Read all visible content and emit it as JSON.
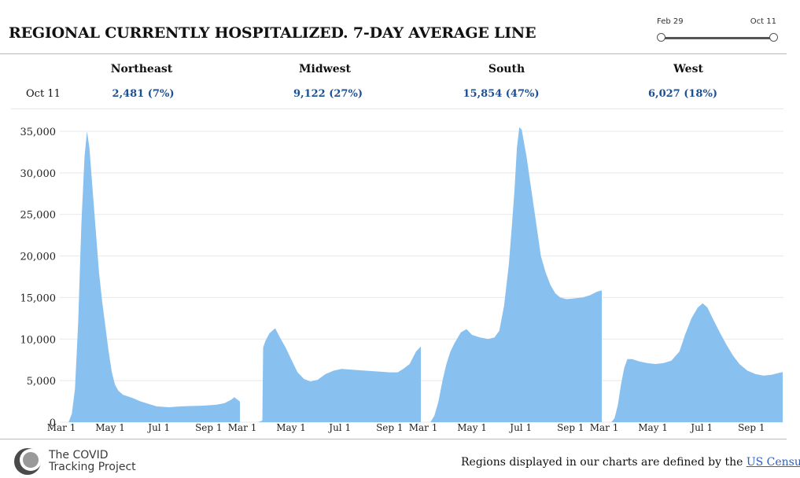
{
  "title": "REGIONAL CURRENTLY HOSPITALIZED. 7-DAY AVERAGE LINE",
  "range": {
    "start": "Feb 29",
    "end": "Oct 11"
  },
  "table": {
    "date": "Oct 11",
    "regions": [
      {
        "name": "Northeast",
        "value": "2,481 (7%)"
      },
      {
        "name": "Midwest",
        "value": "9,122 (27%)"
      },
      {
        "name": "South",
        "value": "15,854 (47%)"
      },
      {
        "name": "West",
        "value": "6,027 (18%)"
      }
    ]
  },
  "chart_data": {
    "type": "area",
    "title": "Regional currently hospitalized, 7-day average",
    "ylim": [
      0,
      35000
    ],
    "y_ticks": [
      0,
      5000,
      10000,
      15000,
      20000,
      25000,
      30000,
      35000
    ],
    "y_tick_labels": [
      "0",
      "5,000",
      "10,000",
      "15,000",
      "20,000",
      "25,000",
      "30,000",
      "35,000"
    ],
    "x_tick_labels": [
      "Mar 1",
      "May 1",
      "Jul 1",
      "Sep 1"
    ],
    "x_ticks_day": [
      1,
      62,
      123,
      185
    ],
    "x_domain_days": [
      -1,
      225
    ],
    "series": [
      {
        "name": "Northeast",
        "points": [
          [
            -1,
            0
          ],
          [
            10,
            0
          ],
          [
            14,
            1000
          ],
          [
            18,
            4000
          ],
          [
            22,
            12000
          ],
          [
            26,
            24000
          ],
          [
            30,
            32000
          ],
          [
            33,
            35000
          ],
          [
            36,
            33000
          ],
          [
            40,
            28000
          ],
          [
            44,
            23000
          ],
          [
            48,
            18000
          ],
          [
            52,
            14500
          ],
          [
            56,
            11500
          ],
          [
            60,
            8500
          ],
          [
            64,
            6000
          ],
          [
            68,
            4500
          ],
          [
            72,
            3800
          ],
          [
            78,
            3300
          ],
          [
            90,
            2900
          ],
          [
            100,
            2500
          ],
          [
            110,
            2200
          ],
          [
            120,
            1900
          ],
          [
            135,
            1800
          ],
          [
            150,
            1900
          ],
          [
            165,
            1950
          ],
          [
            180,
            2000
          ],
          [
            195,
            2100
          ],
          [
            205,
            2300
          ],
          [
            213,
            2700
          ],
          [
            217,
            3000
          ],
          [
            224,
            2481
          ]
        ]
      },
      {
        "name": "Midwest",
        "points": [
          [
            -1,
            0
          ],
          [
            20,
            0
          ],
          [
            24,
            100
          ],
          [
            26,
            200
          ],
          [
            27,
            9000
          ],
          [
            30,
            9800
          ],
          [
            35,
            10700
          ],
          [
            42,
            11300
          ],
          [
            48,
            10200
          ],
          [
            55,
            9000
          ],
          [
            62,
            7600
          ],
          [
            70,
            6000
          ],
          [
            78,
            5200
          ],
          [
            86,
            4900
          ],
          [
            95,
            5100
          ],
          [
            105,
            5800
          ],
          [
            115,
            6200
          ],
          [
            125,
            6400
          ],
          [
            140,
            6300
          ],
          [
            155,
            6200
          ],
          [
            170,
            6100
          ],
          [
            185,
            6000
          ],
          [
            195,
            6000
          ],
          [
            202,
            6400
          ],
          [
            210,
            7000
          ],
          [
            218,
            8500
          ],
          [
            224,
            9122
          ]
        ]
      },
      {
        "name": "South",
        "points": [
          [
            -1,
            0
          ],
          [
            10,
            0
          ],
          [
            15,
            800
          ],
          [
            20,
            2500
          ],
          [
            25,
            5000
          ],
          [
            30,
            7000
          ],
          [
            35,
            8500
          ],
          [
            40,
            9500
          ],
          [
            48,
            10800
          ],
          [
            55,
            11200
          ],
          [
            62,
            10500
          ],
          [
            72,
            10200
          ],
          [
            82,
            10000
          ],
          [
            90,
            10200
          ],
          [
            96,
            11000
          ],
          [
            102,
            14000
          ],
          [
            108,
            19000
          ],
          [
            112,
            24000
          ],
          [
            115,
            28000
          ],
          [
            118,
            33000
          ],
          [
            121,
            35500
          ],
          [
            124,
            35200
          ],
          [
            130,
            32000
          ],
          [
            136,
            28000
          ],
          [
            142,
            24000
          ],
          [
            148,
            20000
          ],
          [
            154,
            18000
          ],
          [
            160,
            16500
          ],
          [
            166,
            15500
          ],
          [
            172,
            15000
          ],
          [
            180,
            14800
          ],
          [
            190,
            14900
          ],
          [
            200,
            15000
          ],
          [
            210,
            15300
          ],
          [
            218,
            15700
          ],
          [
            224,
            15854
          ]
        ]
      },
      {
        "name": "West",
        "points": [
          [
            -1,
            0
          ],
          [
            10,
            0
          ],
          [
            14,
            500
          ],
          [
            18,
            2000
          ],
          [
            22,
            4500
          ],
          [
            26,
            6500
          ],
          [
            30,
            7600
          ],
          [
            36,
            7600
          ],
          [
            45,
            7300
          ],
          [
            55,
            7100
          ],
          [
            65,
            7000
          ],
          [
            75,
            7100
          ],
          [
            85,
            7400
          ],
          [
            95,
            8500
          ],
          [
            102,
            10500
          ],
          [
            110,
            12500
          ],
          [
            118,
            13800
          ],
          [
            124,
            14300
          ],
          [
            130,
            13800
          ],
          [
            138,
            12200
          ],
          [
            146,
            10700
          ],
          [
            154,
            9300
          ],
          [
            162,
            8000
          ],
          [
            170,
            7000
          ],
          [
            180,
            6200
          ],
          [
            190,
            5800
          ],
          [
            200,
            5600
          ],
          [
            210,
            5700
          ],
          [
            218,
            5900
          ],
          [
            224,
            6027
          ]
        ]
      }
    ]
  },
  "footer": {
    "logo_line1": "The COVID",
    "logo_line2": "Tracking Project",
    "note": "Regions displayed in our charts are defined by the",
    "link": "US Census"
  }
}
